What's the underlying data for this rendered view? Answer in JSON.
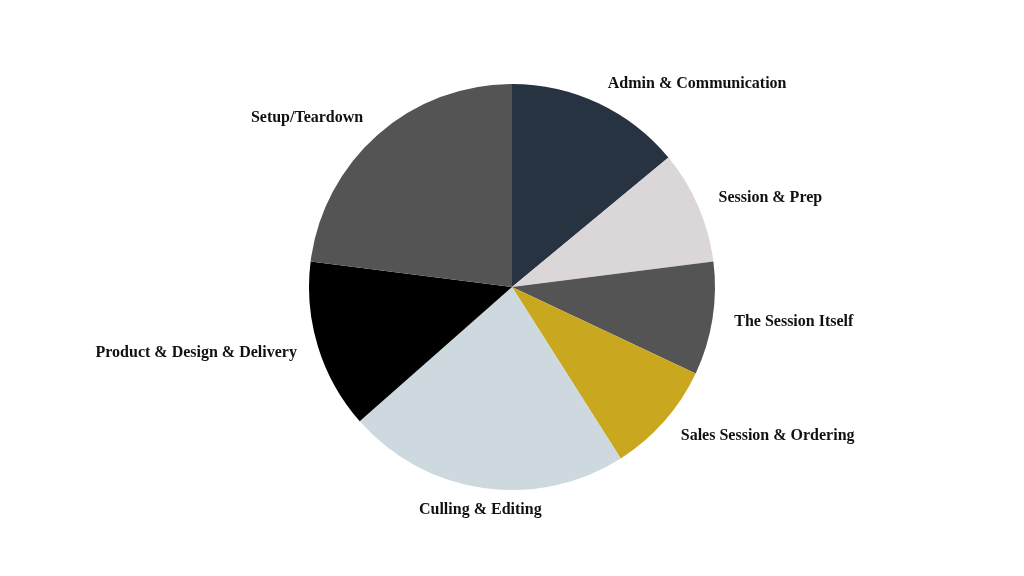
{
  "chart_data": {
    "type": "pie",
    "categories": [
      "Admin & Communication",
      "Session & Prep",
      "The Session Itself",
      "Sales Session & Ordering",
      "Culling & Editing",
      "Product & Design & Delivery",
      "Setup/Teardown"
    ],
    "values": [
      14,
      9,
      9,
      9,
      22.5,
      13.5,
      23
    ],
    "colors": [
      "#283341",
      "#dbd7d8",
      "#545454",
      "#c9a820",
      "#cdd8df",
      "#000000",
      "#545454"
    ],
    "legend": false
  }
}
